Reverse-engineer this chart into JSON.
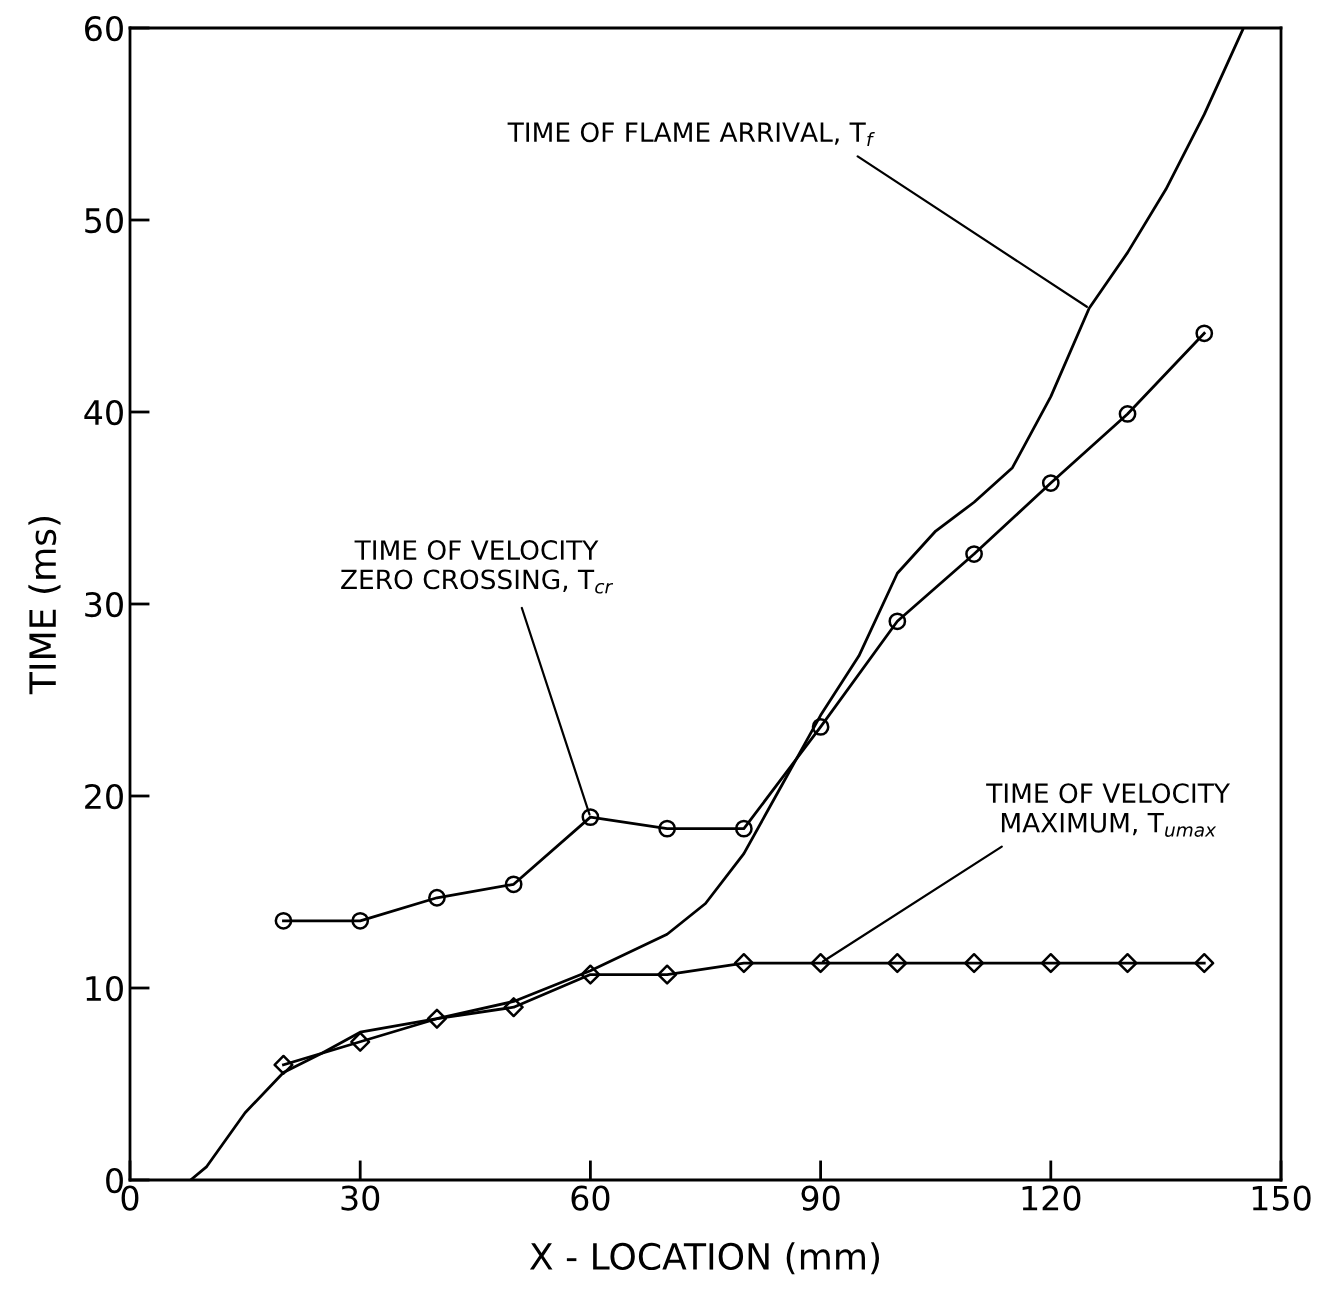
{
  "chart_data": {
    "type": "line",
    "xlabel": "X - LOCATION (mm)",
    "ylabel": "TIME (ms)",
    "xlim": [
      0,
      150
    ],
    "ylim": [
      0,
      60
    ],
    "xticks": [
      0,
      30,
      60,
      90,
      120,
      150
    ],
    "yticks": [
      0,
      10,
      20,
      30,
      40,
      50,
      60
    ],
    "grid": false,
    "legend": false,
    "series": [
      {
        "x": [
          7.9,
          10,
          15,
          20,
          25,
          30,
          40,
          50,
          60,
          70,
          75,
          80,
          85,
          90,
          95,
          100,
          105,
          110,
          115,
          120,
          125,
          130,
          135,
          140,
          145
        ],
        "values": [
          0,
          0.7,
          3.5,
          5.6,
          6.6,
          7.7,
          8.4,
          9.3,
          10.9,
          12.8,
          14.4,
          17.0,
          20.6,
          24.2,
          27.3,
          31.6,
          33.8,
          35.3,
          37.1,
          40.8,
          45.4,
          48.3,
          51.6,
          55.5,
          59.9
        ],
        "color": "#000000",
        "marker": "none"
      },
      {
        "x": [
          20,
          30,
          40,
          50,
          60,
          70,
          80,
          90,
          100,
          110,
          120,
          130,
          140
        ],
        "values": [
          13.5,
          13.5,
          14.7,
          15.4,
          18.9,
          18.3,
          18.3,
          23.6,
          29.1,
          32.6,
          36.3,
          39.9,
          44.1
        ],
        "color": "#000000",
        "marker": "circle"
      },
      {
        "x": [
          20,
          30,
          40,
          50,
          60,
          70,
          80,
          90,
          100,
          110,
          120,
          130,
          140
        ],
        "values": [
          6.0,
          7.2,
          8.4,
          9.0,
          10.7,
          10.7,
          11.3,
          11.3,
          11.3,
          11.3,
          11.3,
          11.3,
          11.3
        ],
        "color": "#000000",
        "marker": "diamond"
      }
    ],
    "annotations": [
      {
        "text": "TIME OF FLAME ARRIVAL, T$_{f}$",
        "x": 125,
        "y": 45.4
      },
      {
        "text": "TIME OF VELOCITY\nZERO CROSSING, T$_{cr}$",
        "x": 60,
        "y": 18.9
      },
      {
        "text": "TIME OF VELOCITY\nMAXIMUM, T$_{umax}$",
        "x": 90,
        "y": 11.3
      }
    ]
  }
}
